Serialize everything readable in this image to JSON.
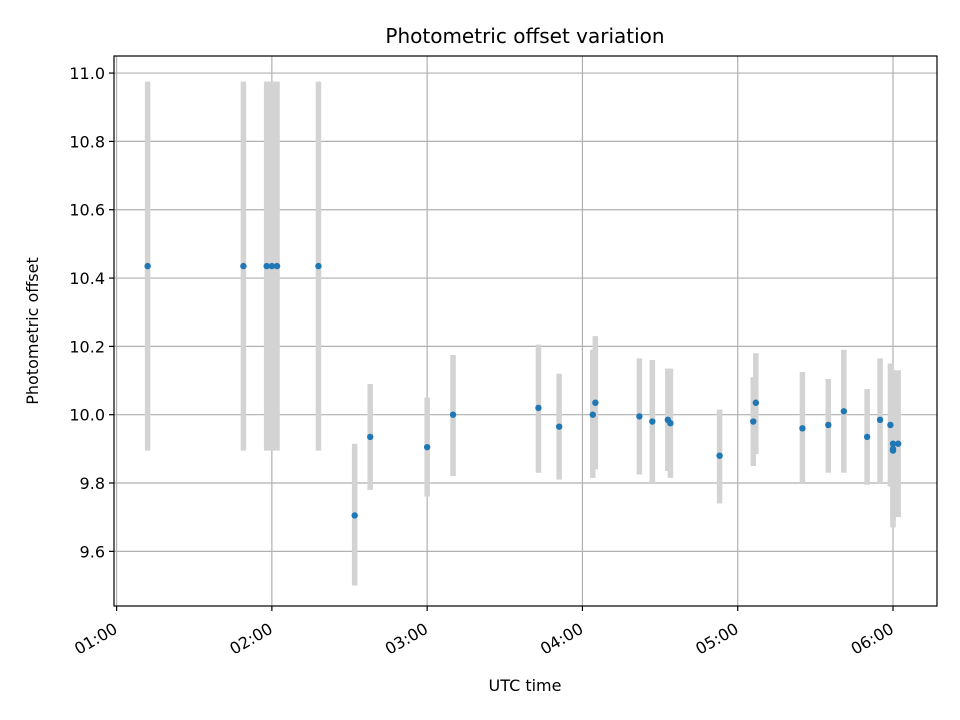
{
  "chart_data": {
    "type": "scatter",
    "title": "Photometric offset variation",
    "xlabel": "UTC time",
    "ylabel": "Photometric offset",
    "x_ticks": [
      "01:00",
      "02:00",
      "03:00",
      "04:00",
      "05:00",
      "06:00"
    ],
    "y_ticks": [
      "9.6",
      "9.8",
      "10.0",
      "10.2",
      "10.4",
      "10.6",
      "10.8",
      "11.0"
    ],
    "xlim": [
      "00:59",
      "06:17"
    ],
    "ylim": [
      9.44,
      11.05
    ],
    "grid": true,
    "colors": {
      "points": "#1f77b4",
      "error_bars": "#d3d3d3",
      "grid": "#b0b0b0"
    },
    "points": [
      {
        "x": "01:12",
        "y": 10.435,
        "err_low": 9.895,
        "err_high": 10.975
      },
      {
        "x": "01:49",
        "y": 10.435,
        "err_low": 9.895,
        "err_high": 10.975
      },
      {
        "x": "01:58",
        "y": 10.435,
        "err_low": 9.895,
        "err_high": 10.975
      },
      {
        "x": "02:00",
        "y": 10.435,
        "err_low": 9.895,
        "err_high": 10.975
      },
      {
        "x": "02:02",
        "y": 10.435,
        "err_low": 9.895,
        "err_high": 10.975
      },
      {
        "x": "02:18",
        "y": 10.435,
        "err_low": 9.895,
        "err_high": 10.975
      },
      {
        "x": "02:32",
        "y": 9.705,
        "err_low": 9.5,
        "err_high": 9.915
      },
      {
        "x": "02:38",
        "y": 9.935,
        "err_low": 9.78,
        "err_high": 10.09
      },
      {
        "x": "03:00",
        "y": 9.905,
        "err_low": 9.76,
        "err_high": 10.05
      },
      {
        "x": "03:10",
        "y": 10.0,
        "err_low": 9.82,
        "err_high": 10.175
      },
      {
        "x": "03:43",
        "y": 10.02,
        "err_low": 9.83,
        "err_high": 10.205
      },
      {
        "x": "03:51",
        "y": 9.965,
        "err_low": 9.81,
        "err_high": 10.12
      },
      {
        "x": "04:04",
        "y": 10.0,
        "err_low": 9.815,
        "err_high": 10.19
      },
      {
        "x": "04:05",
        "y": 10.035,
        "err_low": 9.84,
        "err_high": 10.23
      },
      {
        "x": "04:22",
        "y": 9.995,
        "err_low": 9.825,
        "err_high": 10.165
      },
      {
        "x": "04:27",
        "y": 9.98,
        "err_low": 9.8,
        "err_high": 10.16
      },
      {
        "x": "04:33",
        "y": 9.985,
        "err_low": 9.835,
        "err_high": 10.135
      },
      {
        "x": "04:34",
        "y": 9.975,
        "err_low": 9.815,
        "err_high": 10.135
      },
      {
        "x": "04:53",
        "y": 9.88,
        "err_low": 9.74,
        "err_high": 10.015
      },
      {
        "x": "05:06",
        "y": 9.98,
        "err_low": 9.85,
        "err_high": 10.11
      },
      {
        "x": "05:07",
        "y": 10.035,
        "err_low": 9.885,
        "err_high": 10.18
      },
      {
        "x": "05:25",
        "y": 9.96,
        "err_low": 9.8,
        "err_high": 10.125
      },
      {
        "x": "05:35",
        "y": 9.97,
        "err_low": 9.83,
        "err_high": 10.105
      },
      {
        "x": "05:41",
        "y": 10.01,
        "err_low": 9.83,
        "err_high": 10.19
      },
      {
        "x": "05:50",
        "y": 9.935,
        "err_low": 9.795,
        "err_high": 10.075
      },
      {
        "x": "05:55",
        "y": 9.985,
        "err_low": 9.8,
        "err_high": 10.165
      },
      {
        "x": "05:59",
        "y": 9.97,
        "err_low": 9.79,
        "err_high": 10.15
      },
      {
        "x": "06:00",
        "y": 9.915,
        "err_low": 9.7,
        "err_high": 10.13
      },
      {
        "x": "06:00",
        "y": 9.9,
        "err_low": 9.67,
        "err_high": 10.13
      },
      {
        "x": "06:00",
        "y": 9.895,
        "err_low": 9.69,
        "err_high": 10.105
      },
      {
        "x": "06:02",
        "y": 9.915,
        "err_low": 9.7,
        "err_high": 10.13
      }
    ]
  }
}
